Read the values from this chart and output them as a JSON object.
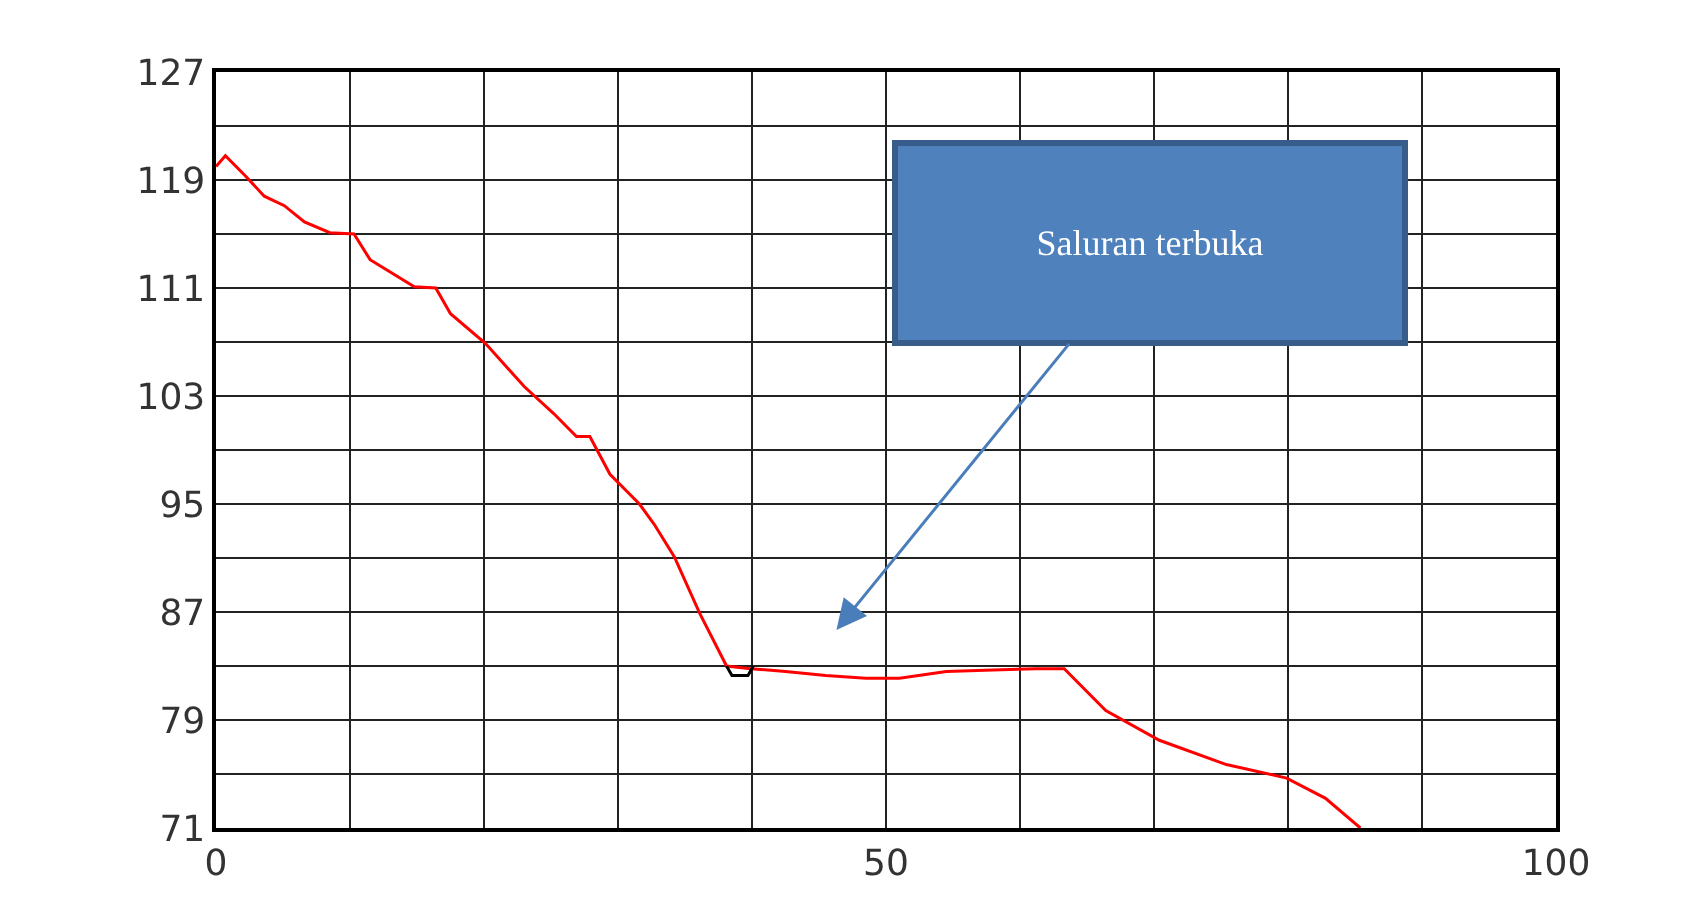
{
  "chart_data": {
    "type": "line",
    "series": [
      {
        "color": "#ff0000",
        "x": [
          0,
          0.7,
          2.2,
          3.6,
          5.1,
          6.6,
          8.5,
          10.3,
          11.5,
          14.8,
          16.4,
          17.5,
          20.1,
          23,
          25.2,
          26.9,
          27.9,
          29.4,
          31.6,
          32.7,
          34.2,
          36.1,
          38.1,
          39.9,
          42.5,
          45.5,
          48.5,
          51,
          54.5,
          58,
          61.2,
          63.3,
          66.4,
          70.4,
          75.4,
          79.9,
          82.8,
          85.4
        ],
        "values": [
          120,
          120.8,
          119.3,
          117.8,
          117.1,
          115.9,
          115.1,
          115,
          113.1,
          111.1,
          111,
          109.1,
          106.9,
          103.7,
          101.7,
          100,
          100,
          97.2,
          95,
          93.5,
          91.1,
          86.9,
          83,
          82.8,
          82.6,
          82.3,
          82.1,
          82.1,
          82.6,
          82.7,
          82.8,
          82.8,
          79.7,
          77.5,
          75.7,
          74.7,
          73.2,
          71
        ]
      },
      {
        "color": "#000000",
        "x": [
          38.1,
          38.5,
          39.7,
          40.1
        ],
        "values": [
          83,
          82.3,
          82.3,
          83
        ]
      }
    ],
    "xlim": [
      0,
      100
    ],
    "xticks": [
      0,
      {
        "value": 10,
        "label": null
      },
      {
        "value": 20,
        "label": null
      },
      {
        "value": 30,
        "label": null
      },
      {
        "value": 40,
        "label": null
      },
      50,
      {
        "value": 60,
        "label": null
      },
      {
        "value": 70,
        "label": null
      },
      {
        "value": 80,
        "label": null
      },
      {
        "value": 90,
        "label": null
      },
      100
    ],
    "ylim": [
      71,
      127
    ],
    "yticks": [
      71,
      {
        "value": 75,
        "label": null
      },
      79,
      {
        "value": 83,
        "label": null
      },
      87,
      {
        "value": 91,
        "label": null
      },
      95,
      {
        "value": 99,
        "label": null
      },
      103,
      {
        "value": 107,
        "label": null
      },
      111,
      {
        "value": 115,
        "label": null
      },
      119,
      {
        "value": 123,
        "label": null
      },
      127
    ],
    "grid": true,
    "marker": "none",
    "line_style": "solid",
    "annotations": [
      "Saluran terbuka"
    ]
  }
}
